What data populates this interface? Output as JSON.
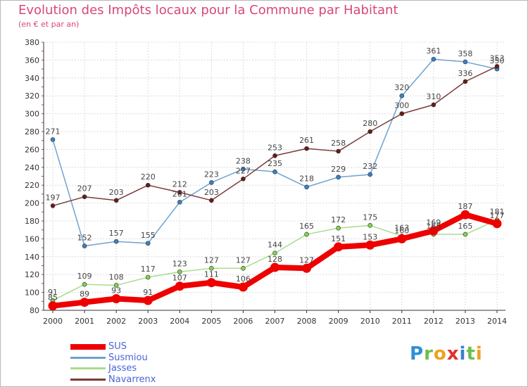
{
  "header": {
    "title": "Evolution des Impôts locaux pour la Commune par Habitant",
    "subtitle": "(en € et par an)"
  },
  "logo": {
    "letters": [
      "P",
      "r",
      "o",
      "x",
      "i",
      "t",
      "i"
    ],
    "colors": [
      "#2f8fd6",
      "#6cc04a",
      "#f0a020",
      "#e0312a",
      "#3a7fd0",
      "#6cc04a",
      "#f0a020"
    ]
  },
  "chart_data": {
    "type": "line",
    "title": "Evolution des Impôts locaux pour la Commune par Habitant",
    "subtitle": "(en € et par an)",
    "xlabel": "",
    "ylabel": "",
    "x": [
      "2000",
      "2001",
      "2002",
      "2003",
      "2004",
      "2005",
      "2006",
      "2007",
      "2008",
      "2009",
      "2010",
      "2011",
      "2012",
      "2013",
      "2014"
    ],
    "ylim": [
      80,
      380
    ],
    "yticks": [
      80,
      100,
      120,
      140,
      160,
      180,
      200,
      220,
      240,
      260,
      280,
      300,
      320,
      340,
      360,
      380
    ],
    "grid": true,
    "legend_position": "bottom-left",
    "series": [
      {
        "name": "SUS",
        "color": "#ee0000",
        "marker_color": "#ee0000",
        "values": [
          85,
          89,
          93,
          91,
          107,
          111,
          106,
          128,
          127,
          151,
          153,
          160,
          169,
          187,
          177
        ],
        "labels": [
          "85",
          "89",
          "93",
          "91",
          "107",
          "111",
          "106",
          "128",
          "127",
          "151",
          "153",
          "160",
          "169",
          "187",
          "177"
        ]
      },
      {
        "name": "Susmiou",
        "color": "#6fa2cf",
        "marker_color": "#3a82c4",
        "values": [
          271,
          152,
          157,
          155,
          201,
          223,
          238,
          235,
          218,
          229,
          232,
          320,
          361,
          358,
          350
        ],
        "labels": [
          "271",
          "152",
          "157",
          "155",
          "201",
          "223",
          "238",
          "235",
          "218",
          "229",
          "232",
          "320",
          "361",
          "358",
          "350"
        ]
      },
      {
        "name": "Jasses",
        "color": "#a9dc8c",
        "marker_color": "#7fd44a",
        "values": [
          91,
          109,
          108,
          117,
          123,
          127,
          127,
          144,
          165,
          172,
          175,
          163,
          165,
          165,
          181
        ],
        "labels": [
          "91",
          "109",
          "108",
          "117",
          "123",
          "127",
          "127",
          "144",
          "165",
          "172",
          "175",
          "163",
          "165",
          "165",
          "181"
        ]
      },
      {
        "name": "Navarrenx",
        "color": "#7a3a3a",
        "marker_color": "#6a1a1a",
        "values": [
          197,
          207,
          203,
          220,
          212,
          203,
          227,
          253,
          261,
          258,
          280,
          300,
          310,
          336,
          353
        ],
        "labels": [
          "197",
          "207",
          "203",
          "220",
          "212",
          "203",
          "227",
          "253",
          "261",
          "258",
          "280",
          "300",
          "310",
          "336",
          "353"
        ]
      }
    ]
  }
}
